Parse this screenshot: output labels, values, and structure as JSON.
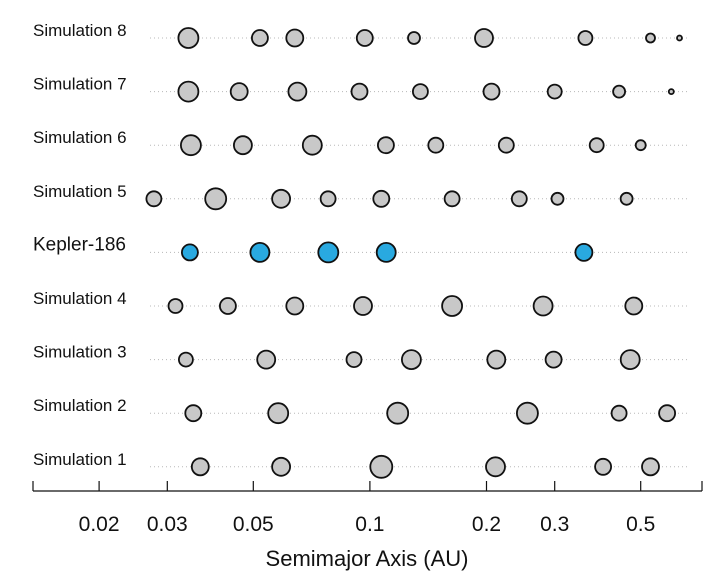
{
  "chart_data": {
    "type": "scatter",
    "xlabel": "Semimajor Axis (AU)",
    "xscale": "log",
    "xlim": [
      0.0135,
      0.72
    ],
    "xticks": [
      0.02,
      0.03,
      0.05,
      0.1,
      0.2,
      0.3,
      0.5
    ],
    "xtick_labels": [
      "0.02",
      "0.03",
      "0.05",
      "0.1",
      "0.2",
      "0.3",
      "0.5"
    ],
    "grid": false,
    "colors": {
      "simulated": "#c8c8c8",
      "observed": "#29a9e0",
      "outline": "#111111"
    },
    "value_keys": {
      "a": "semimajor axis (AU)",
      "r": "relative planet size"
    },
    "series": [
      {
        "name": "Simulation 8",
        "highlight": false,
        "planets": [
          {
            "a": 0.034,
            "r": 1.0
          },
          {
            "a": 0.052,
            "r": 0.8
          },
          {
            "a": 0.064,
            "r": 0.85
          },
          {
            "a": 0.097,
            "r": 0.8
          },
          {
            "a": 0.13,
            "r": 0.6
          },
          {
            "a": 0.197,
            "r": 0.9
          },
          {
            "a": 0.36,
            "r": 0.7
          },
          {
            "a": 0.53,
            "r": 0.45
          },
          {
            "a": 0.63,
            "r": 0.25
          }
        ]
      },
      {
        "name": "Simulation 7",
        "highlight": false,
        "planets": [
          {
            "a": 0.034,
            "r": 1.0
          },
          {
            "a": 0.046,
            "r": 0.85
          },
          {
            "a": 0.065,
            "r": 0.9
          },
          {
            "a": 0.094,
            "r": 0.8
          },
          {
            "a": 0.135,
            "r": 0.75
          },
          {
            "a": 0.206,
            "r": 0.8
          },
          {
            "a": 0.3,
            "r": 0.7
          },
          {
            "a": 0.44,
            "r": 0.6
          },
          {
            "a": 0.6,
            "r": 0.25
          }
        ]
      },
      {
        "name": "Simulation 6",
        "highlight": false,
        "planets": [
          {
            "a": 0.0345,
            "r": 1.0
          },
          {
            "a": 0.047,
            "r": 0.9
          },
          {
            "a": 0.071,
            "r": 0.95
          },
          {
            "a": 0.11,
            "r": 0.8
          },
          {
            "a": 0.148,
            "r": 0.75
          },
          {
            "a": 0.225,
            "r": 0.75
          },
          {
            "a": 0.385,
            "r": 0.7
          },
          {
            "a": 0.5,
            "r": 0.5
          }
        ]
      },
      {
        "name": "Simulation 5",
        "highlight": false,
        "planets": [
          {
            "a": 0.0277,
            "r": 0.75
          },
          {
            "a": 0.04,
            "r": 1.05
          },
          {
            "a": 0.059,
            "r": 0.9
          },
          {
            "a": 0.078,
            "r": 0.75
          },
          {
            "a": 0.107,
            "r": 0.8
          },
          {
            "a": 0.163,
            "r": 0.75
          },
          {
            "a": 0.243,
            "r": 0.75
          },
          {
            "a": 0.305,
            "r": 0.6
          },
          {
            "a": 0.46,
            "r": 0.6
          }
        ]
      },
      {
        "name": "Kepler-186",
        "highlight": true,
        "planets": [
          {
            "a": 0.0343,
            "r": 0.8
          },
          {
            "a": 0.052,
            "r": 0.95
          },
          {
            "a": 0.0781,
            "r": 1.0
          },
          {
            "a": 0.1102,
            "r": 0.95
          },
          {
            "a": 0.3568,
            "r": 0.85
          }
        ]
      },
      {
        "name": "Simulation 4",
        "highlight": false,
        "planets": [
          {
            "a": 0.0315,
            "r": 0.7
          },
          {
            "a": 0.043,
            "r": 0.8
          },
          {
            "a": 0.064,
            "r": 0.85
          },
          {
            "a": 0.096,
            "r": 0.9
          },
          {
            "a": 0.163,
            "r": 1.0
          },
          {
            "a": 0.28,
            "r": 0.95
          },
          {
            "a": 0.48,
            "r": 0.85
          }
        ]
      },
      {
        "name": "Simulation 3",
        "highlight": false,
        "planets": [
          {
            "a": 0.0335,
            "r": 0.7
          },
          {
            "a": 0.054,
            "r": 0.9
          },
          {
            "a": 0.091,
            "r": 0.75
          },
          {
            "a": 0.128,
            "r": 0.95
          },
          {
            "a": 0.212,
            "r": 0.9
          },
          {
            "a": 0.298,
            "r": 0.8
          },
          {
            "a": 0.47,
            "r": 0.95
          }
        ]
      },
      {
        "name": "Simulation 2",
        "highlight": false,
        "planets": [
          {
            "a": 0.035,
            "r": 0.8
          },
          {
            "a": 0.058,
            "r": 1.0
          },
          {
            "a": 0.118,
            "r": 1.05
          },
          {
            "a": 0.255,
            "r": 1.05
          },
          {
            "a": 0.44,
            "r": 0.75
          },
          {
            "a": 0.585,
            "r": 0.8
          }
        ]
      },
      {
        "name": "Simulation 1",
        "highlight": false,
        "planets": [
          {
            "a": 0.0365,
            "r": 0.85
          },
          {
            "a": 0.059,
            "r": 0.9
          },
          {
            "a": 0.107,
            "r": 1.1
          },
          {
            "a": 0.211,
            "r": 0.95
          },
          {
            "a": 0.4,
            "r": 0.8
          },
          {
            "a": 0.53,
            "r": 0.85
          }
        ]
      }
    ]
  }
}
